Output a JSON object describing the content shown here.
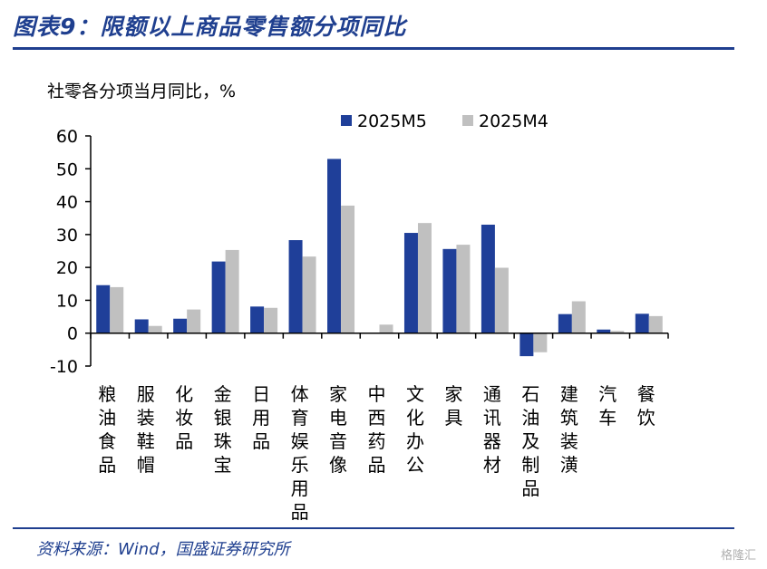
{
  "header": {
    "title": "图表9：限额以上商品零售额分项同比"
  },
  "footer": {
    "source": "资料来源：Wind，国盛证券研究所",
    "watermark": "格隆汇"
  },
  "chart_data": {
    "type": "bar",
    "ylabel": "社零各分项当月同比，%",
    "ylim": [
      -10,
      60
    ],
    "yticks": [
      -10,
      0,
      10,
      20,
      30,
      40,
      50,
      60
    ],
    "grid": false,
    "legend_position": "top-right",
    "categories": [
      "粮油食品",
      "服装鞋帽",
      "化妆品",
      "金银珠宝",
      "日用品",
      "体育娱乐用品",
      "家电音像",
      "中西药品",
      "文化办公",
      "家具",
      "通讯器材",
      "石油及制品",
      "建筑装潢",
      "汽车",
      "餐饮"
    ],
    "series": [
      {
        "name": "2025M5",
        "color": "#1f3f99",
        "values": [
          14.6,
          4.2,
          4.4,
          21.8,
          8.1,
          28.3,
          53.0,
          0.0,
          30.5,
          25.6,
          33.0,
          -7.0,
          5.8,
          1.1,
          5.9
        ]
      },
      {
        "name": "2025M4",
        "color": "#c0c0c0",
        "values": [
          14.0,
          2.2,
          7.2,
          25.3,
          7.7,
          23.3,
          38.8,
          2.6,
          33.5,
          26.9,
          19.9,
          -5.8,
          9.7,
          0.7,
          5.2
        ]
      }
    ]
  }
}
